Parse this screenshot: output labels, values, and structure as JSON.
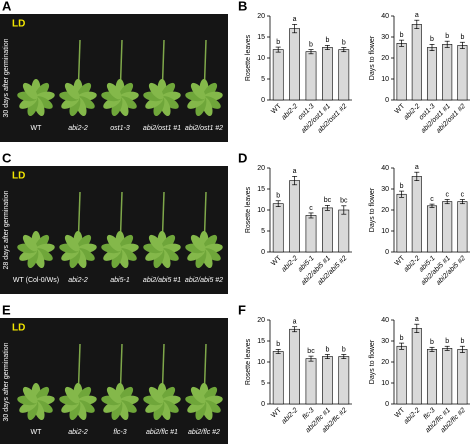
{
  "panels": [
    {
      "letter": "A",
      "condition": "LD",
      "side_label": "30 days after germination",
      "genotypes": [
        "WT",
        "abi2-2",
        "ost1-3",
        "abi2/ost1 #1",
        "abi2/ost1 #2"
      ]
    },
    {
      "letter": "C",
      "condition": "LD",
      "side_label": "28 days after germination",
      "genotypes": [
        "WT (Col-0/Ws)",
        "abi2-2",
        "abi5-1",
        "abi2/abi5 #1",
        "abi2/abi5 #2"
      ]
    },
    {
      "letter": "E",
      "condition": "LD",
      "side_label": "30 days after germination",
      "genotypes": [
        "WT",
        "abi2-2",
        "flc-3",
        "abi2/flc #1",
        "abi2/flc #2"
      ]
    }
  ],
  "chart_data": [
    {
      "type": "bar",
      "panel": "B",
      "ylabel": "Rosette leaves",
      "categories": [
        "WT",
        "abi2-2",
        "ost1-3",
        "abi2/ost1 #1",
        "abi2/ost1 #2"
      ],
      "values": [
        12,
        17,
        11.5,
        12.5,
        12
      ],
      "errors": [
        0.6,
        1,
        0.5,
        0.5,
        0.5
      ],
      "annotations": [
        "b",
        "a",
        "b",
        "b",
        "b"
      ],
      "ylim": [
        0,
        20
      ],
      "yticks": [
        0,
        5,
        10,
        15,
        20
      ],
      "color": "#d9d9d9"
    },
    {
      "type": "bar",
      "ylabel": "Days to flower",
      "categories": [
        "WT",
        "abi2-2",
        "ost1-3",
        "abi2/ost1 #1",
        "abi2/ost1 #2"
      ],
      "values": [
        27,
        36,
        25,
        26.5,
        26
      ],
      "errors": [
        1.5,
        2,
        1.5,
        1.5,
        1.5
      ],
      "annotations": [
        "b",
        "a",
        "b",
        "b",
        "b"
      ],
      "ylim": [
        0,
        40
      ],
      "yticks": [
        0,
        10,
        20,
        30,
        40
      ],
      "color": "#d9d9d9"
    },
    {
      "type": "bar",
      "panel": "D",
      "ylabel": "Rosette leaves",
      "categories": [
        "WT",
        "abi2-2",
        "abi5-1",
        "abi2/abi5 #1",
        "abi2/abi5 #2"
      ],
      "values": [
        11.5,
        17,
        8.7,
        10.5,
        10
      ],
      "errors": [
        0.7,
        1,
        0.6,
        0.6,
        1
      ],
      "annotations": [
        "b",
        "a",
        "c",
        "bc",
        "bc"
      ],
      "ylim": [
        0,
        20
      ],
      "yticks": [
        0,
        5,
        10,
        15,
        20
      ],
      "color": "#d9d9d9"
    },
    {
      "type": "bar",
      "ylabel": "Days to flower",
      "categories": [
        "WT",
        "abi2-2",
        "abi5-1",
        "abi2/abi5 #1",
        "abi2/abi5 #2"
      ],
      "values": [
        27.5,
        36,
        22,
        24,
        24
      ],
      "errors": [
        1.5,
        2,
        0.8,
        1,
        1
      ],
      "annotations": [
        "b",
        "a",
        "c",
        "c",
        "c"
      ],
      "ylim": [
        0,
        40
      ],
      "yticks": [
        0,
        10,
        20,
        30,
        40
      ],
      "color": "#d9d9d9"
    },
    {
      "type": "bar",
      "panel": "F",
      "ylabel": "Rosette leaves",
      "categories": [
        "WT",
        "abi2-2",
        "flc-3",
        "abi2/flc #1",
        "abi2/flc #2"
      ],
      "values": [
        12.5,
        17.8,
        10.8,
        11.3,
        11.3
      ],
      "errors": [
        0.5,
        0.6,
        0.6,
        0.5,
        0.5
      ],
      "annotations": [
        "b",
        "a",
        "bc",
        "b",
        "b"
      ],
      "ylim": [
        0,
        20
      ],
      "yticks": [
        0,
        5,
        10,
        15,
        20
      ],
      "color": "#d9d9d9"
    },
    {
      "type": "bar",
      "ylabel": "Days to flower",
      "categories": [
        "WT",
        "abi2-2",
        "flc-3",
        "abi2/flc #1",
        "abi2/flc #2"
      ],
      "values": [
        27.5,
        36,
        26,
        26.5,
        26
      ],
      "errors": [
        1.5,
        2,
        1,
        1,
        1.5
      ],
      "annotations": [
        "b",
        "a",
        "b",
        "b",
        "b"
      ],
      "ylim": [
        0,
        40
      ],
      "yticks": [
        0,
        10,
        20,
        30,
        40
      ],
      "color": "#d9d9d9"
    }
  ]
}
